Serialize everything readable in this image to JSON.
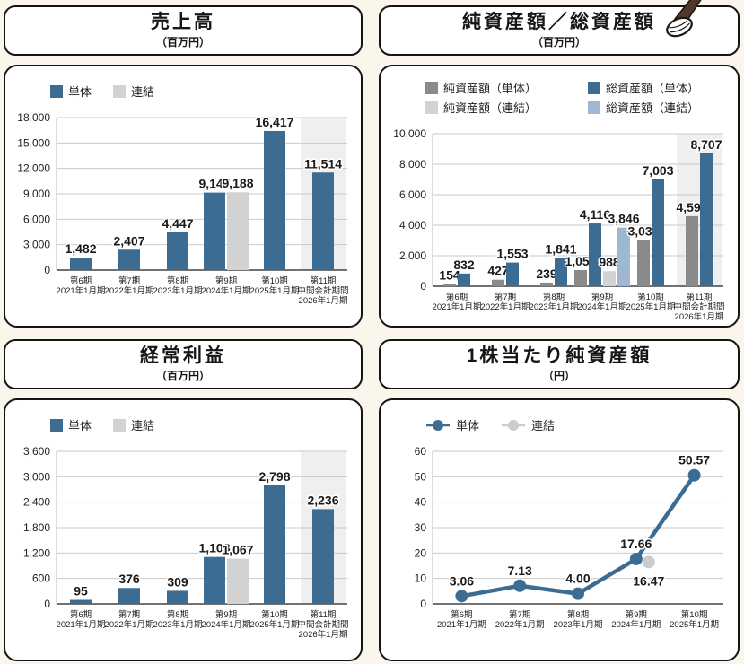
{
  "page": {
    "background": "#fbf6ec",
    "panel_border": "#151515"
  },
  "decoration": {
    "icon": "golf-club"
  },
  "chart_data": [
    {
      "title": "売上高",
      "subtitle": "（百万円）",
      "type": "bar",
      "ylim": [
        0,
        18000
      ],
      "ytick_step": 3000,
      "grid": true,
      "legend_position": "top-left",
      "highlight_last": true,
      "categories": [
        [
          "第6期",
          "2021年1月期"
        ],
        [
          "第7期",
          "2022年1月期"
        ],
        [
          "第8期",
          "2023年1月期"
        ],
        [
          "第9期",
          "2024年1月期"
        ],
        [
          "第10期",
          "2025年1月期"
        ],
        [
          "第11期",
          "中間会計期間",
          "2026年1月期"
        ]
      ],
      "series": [
        {
          "name": "単体",
          "color": "#3d6c93",
          "values": [
            1482,
            2407,
            4447,
            9147,
            16417,
            11514
          ],
          "labels": [
            "1,482",
            "2,407",
            "4,447",
            "9,147",
            "16,417",
            "11,514"
          ]
        },
        {
          "name": "連結",
          "color": "#d2d2d2",
          "values": [
            null,
            null,
            null,
            9188,
            null,
            null
          ],
          "labels": [
            null,
            null,
            null,
            "9,188",
            null,
            null
          ]
        }
      ]
    },
    {
      "title": "純資産額／総資産額",
      "subtitle": "（百万円）",
      "type": "bar",
      "ylim": [
        0,
        10000
      ],
      "ytick_step": 2000,
      "grid": true,
      "legend_position": "top-left",
      "highlight_last": true,
      "categories": [
        [
          "第6期",
          "2021年1月期"
        ],
        [
          "第7期",
          "2022年1月期"
        ],
        [
          "第8期",
          "2023年1月期"
        ],
        [
          "第9期",
          "2024年1月期"
        ],
        [
          "第10期",
          "2025年1月期"
        ],
        [
          "第11期",
          "中間会計期間",
          "2026年1月期"
        ]
      ],
      "series": [
        {
          "name": "純資産額（単体）",
          "color": "#8a8a8a",
          "values": [
            154,
            427,
            239,
            1059,
            3033,
            4594
          ],
          "labels": [
            "154",
            "427",
            "239",
            "1,059",
            "3,033",
            "4,594"
          ]
        },
        {
          "name": "総資産額（単体）",
          "color": "#3d6c93",
          "values": [
            832,
            1553,
            1841,
            4116,
            7003,
            8707
          ],
          "labels": [
            "832",
            "1,553",
            "1,841",
            "4,116",
            "7,003",
            "8,707"
          ]
        },
        {
          "name": "純資産額（連結）",
          "color": "#d2d2d2",
          "values": [
            null,
            null,
            null,
            988,
            null,
            null
          ],
          "labels": [
            null,
            null,
            null,
            "988",
            null,
            null
          ]
        },
        {
          "name": "総資産額（連結）",
          "color": "#9fb8d2",
          "values": [
            null,
            null,
            null,
            3846,
            null,
            null
          ],
          "labels": [
            null,
            null,
            null,
            "3,846",
            null,
            null
          ]
        }
      ]
    },
    {
      "title": "経常利益",
      "subtitle": "（百万円）",
      "type": "bar",
      "ylim": [
        0,
        3600
      ],
      "ytick_step": 600,
      "grid": true,
      "legend_position": "top-left",
      "highlight_last": true,
      "categories": [
        [
          "第6期",
          "2021年1月期"
        ],
        [
          "第7期",
          "2022年1月期"
        ],
        [
          "第8期",
          "2023年1月期"
        ],
        [
          "第9期",
          "2024年1月期"
        ],
        [
          "第10期",
          "2025年1月期"
        ],
        [
          "第11期",
          "中間会計期間",
          "2026年1月期"
        ]
      ],
      "series": [
        {
          "name": "単体",
          "color": "#3d6c93",
          "values": [
            95,
            376,
            309,
            1108,
            2798,
            2236
          ],
          "labels": [
            "95",
            "376",
            "309",
            "1,108",
            "2,798",
            "2,236"
          ]
        },
        {
          "name": "連結",
          "color": "#d2d2d2",
          "values": [
            null,
            null,
            null,
            1067,
            null,
            null
          ],
          "labels": [
            null,
            null,
            null,
            "1,067",
            null,
            null
          ]
        }
      ]
    },
    {
      "title": "1株当たり純資産額",
      "subtitle": "（円）",
      "type": "line",
      "ylim": [
        0,
        60
      ],
      "ytick_step": 10,
      "grid": true,
      "legend_position": "top-left",
      "highlight_last": false,
      "categories": [
        [
          "第6期",
          "2021年1月期"
        ],
        [
          "第7期",
          "2022年1月期"
        ],
        [
          "第8期",
          "2023年1月期"
        ],
        [
          "第9期",
          "2024年1月期"
        ],
        [
          "第10期",
          "2025年1月期"
        ]
      ],
      "series": [
        {
          "name": "単体",
          "color": "#3d6c93",
          "values": [
            3.06,
            7.13,
            4.0,
            17.66,
            50.57
          ],
          "labels": [
            "3.06",
            "7.13",
            "4.00",
            "17.66",
            "50.57"
          ]
        },
        {
          "name": "連結",
          "color": "#cccccc",
          "values": [
            null,
            null,
            null,
            16.47,
            null
          ],
          "labels": [
            null,
            null,
            null,
            "16.47",
            null
          ]
        }
      ]
    }
  ]
}
